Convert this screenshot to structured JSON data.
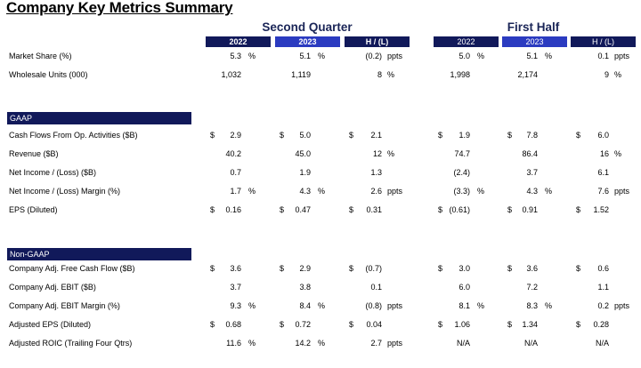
{
  "title": "Company Key Metrics Summary",
  "groups": {
    "q2": "Second Quarter",
    "h1": "First Half"
  },
  "col_headers": [
    "2022",
    "2023",
    "H / (L)",
    "2022",
    "2023",
    "H / (L)"
  ],
  "sections": {
    "gaap": "GAAP",
    "nongaap": "Non-GAAP"
  },
  "rows": [
    {
      "label": "Market Share (%)",
      "cells": [
        {
          "v": "5.3",
          "u": "%"
        },
        {
          "v": "5.1",
          "u": "%"
        },
        {
          "v": "(0.2)",
          "u": "ppts"
        },
        {
          "v": "5.0",
          "u": "%"
        },
        {
          "v": "5.1",
          "u": "%"
        },
        {
          "v": "0.1",
          "u": "ppts"
        }
      ]
    },
    {
      "label": "Wholesale Units (000)",
      "cells": [
        {
          "v": "1,032"
        },
        {
          "v": "1,119"
        },
        {
          "v": "8",
          "u": "%"
        },
        {
          "v": "1,998"
        },
        {
          "v": "2,174"
        },
        {
          "v": "9",
          "u": "%"
        }
      ]
    },
    {
      "label": "Cash Flows From Op. Activities ($B)",
      "cells": [
        {
          "d": "$",
          "v": "2.9"
        },
        {
          "d": "$",
          "v": "5.0"
        },
        {
          "d": "$",
          "v": "2.1"
        },
        {
          "d": "$",
          "v": "1.9"
        },
        {
          "d": "$",
          "v": "7.8"
        },
        {
          "d": "$",
          "v": "6.0"
        }
      ]
    },
    {
      "label": "Revenue ($B)",
      "cells": [
        {
          "v": "40.2"
        },
        {
          "v": "45.0"
        },
        {
          "v": "12",
          "u": "%"
        },
        {
          "v": "74.7"
        },
        {
          "v": "86.4"
        },
        {
          "v": "16",
          "u": "%"
        }
      ]
    },
    {
      "label": "Net Income / (Loss) ($B)",
      "cells": [
        {
          "v": "0.7"
        },
        {
          "v": "1.9"
        },
        {
          "v": "1.3"
        },
        {
          "v": "(2.4)"
        },
        {
          "v": "3.7"
        },
        {
          "v": "6.1"
        }
      ]
    },
    {
      "label": "Net Income / (Loss) Margin (%)",
      "cells": [
        {
          "v": "1.7",
          "u": "%"
        },
        {
          "v": "4.3",
          "u": "%"
        },
        {
          "v": "2.6",
          "u": "ppts"
        },
        {
          "v": "(3.3)",
          "u": "%"
        },
        {
          "v": "4.3",
          "u": "%"
        },
        {
          "v": "7.6",
          "u": "ppts"
        }
      ]
    },
    {
      "label": "EPS (Diluted)",
      "cells": [
        {
          "d": "$",
          "v": "0.16"
        },
        {
          "d": "$",
          "v": "0.47"
        },
        {
          "d": "$",
          "v": "0.31"
        },
        {
          "d": "$",
          "v": "(0.61)"
        },
        {
          "d": "$",
          "v": "0.91"
        },
        {
          "d": "$",
          "v": "1.52"
        }
      ]
    },
    {
      "label": "Company Adj. Free Cash Flow ($B)",
      "cells": [
        {
          "d": "$",
          "v": "3.6"
        },
        {
          "d": "$",
          "v": "2.9"
        },
        {
          "d": "$",
          "v": "(0.7)"
        },
        {
          "d": "$",
          "v": "3.0"
        },
        {
          "d": "$",
          "v": "3.6"
        },
        {
          "d": "$",
          "v": "0.6"
        }
      ]
    },
    {
      "label": "Company Adj. EBIT ($B)",
      "cells": [
        {
          "v": "3.7"
        },
        {
          "v": "3.8"
        },
        {
          "v": "0.1"
        },
        {
          "v": "6.0"
        },
        {
          "v": "7.2"
        },
        {
          "v": "1.1"
        }
      ]
    },
    {
      "label": "Company Adj. EBIT Margin (%)",
      "cells": [
        {
          "v": "9.3",
          "u": "%"
        },
        {
          "v": "8.4",
          "u": "%"
        },
        {
          "v": "(0.8)",
          "u": "ppts"
        },
        {
          "v": "8.1",
          "u": "%"
        },
        {
          "v": "8.3",
          "u": "%"
        },
        {
          "v": "0.2",
          "u": "ppts"
        }
      ]
    },
    {
      "label": "Adjusted EPS (Diluted)",
      "cells": [
        {
          "d": "$",
          "v": "0.68"
        },
        {
          "d": "$",
          "v": "0.72"
        },
        {
          "d": "$",
          "v": "0.04"
        },
        {
          "d": "$",
          "v": "1.06"
        },
        {
          "d": "$",
          "v": "1.34"
        },
        {
          "d": "$",
          "v": "0.28"
        }
      ]
    },
    {
      "label": "Adjusted ROIC (Trailing Four Qtrs)",
      "cells": [
        {
          "v": "11.6",
          "u": "%"
        },
        {
          "v": "14.2",
          "u": "%"
        },
        {
          "v": "2.7",
          "u": "ppts"
        },
        {
          "v": "N/A"
        },
        {
          "v": "N/A"
        },
        {
          "v": "N/A"
        }
      ]
    }
  ]
}
